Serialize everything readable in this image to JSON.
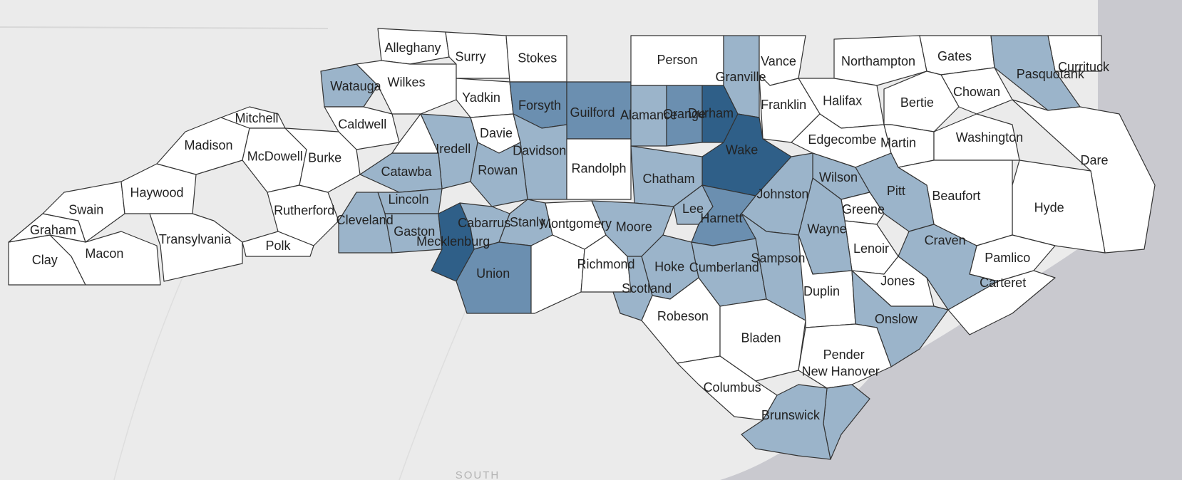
{
  "basemap": {
    "label": "SOUTH",
    "land_color": "#ebebeb",
    "water_color": "#c9c9cf",
    "state_line_color": "#d8d8d8"
  },
  "legend_colors": {
    "none": "#ffffff",
    "light": "#9bb4ca",
    "medium": "#6b8fb0",
    "dark": "#2f5f88"
  },
  "counties": [
    {
      "name": "Alleghany",
      "level": "none"
    },
    {
      "name": "Surry",
      "level": "none"
    },
    {
      "name": "Stokes",
      "level": "none"
    },
    {
      "name": "Person",
      "level": "none"
    },
    {
      "name": "Vance",
      "level": "none"
    },
    {
      "name": "Northampton",
      "level": "none"
    },
    {
      "name": "Gates",
      "level": "none"
    },
    {
      "name": "Currituck",
      "level": "none"
    },
    {
      "name": "Pasquotank",
      "level": "light"
    },
    {
      "name": "Watauga",
      "level": "light"
    },
    {
      "name": "Wilkes",
      "level": "none"
    },
    {
      "name": "Yadkin",
      "level": "none"
    },
    {
      "name": "Forsyth",
      "level": "medium"
    },
    {
      "name": "Alamance",
      "level": "light"
    },
    {
      "name": "Durham",
      "level": "dark"
    },
    {
      "name": "Halifax",
      "level": "none"
    },
    {
      "name": "Bertie",
      "level": "none"
    },
    {
      "name": "Chowan",
      "level": "none"
    },
    {
      "name": "Mitchell",
      "level": "none"
    },
    {
      "name": "Caldwell",
      "level": "none"
    },
    {
      "name": "Franklin",
      "level": "none"
    },
    {
      "name": "Davie",
      "level": "none"
    },
    {
      "name": "Madison",
      "level": "none"
    },
    {
      "name": "Edgecombe",
      "level": "none"
    },
    {
      "name": "Martin",
      "level": "none"
    },
    {
      "name": "Washington",
      "level": "none"
    },
    {
      "name": "Iredell",
      "level": "light"
    },
    {
      "name": "Davidson",
      "level": "light"
    },
    {
      "name": "Burke",
      "level": "none"
    },
    {
      "name": "Wake",
      "level": "dark"
    },
    {
      "name": "McDowell",
      "level": "none"
    },
    {
      "name": "Catawba",
      "level": "light"
    },
    {
      "name": "Chatham",
      "level": "light"
    },
    {
      "name": "Wilson",
      "level": "light"
    },
    {
      "name": "Dare",
      "level": "none"
    },
    {
      "name": "Rowan",
      "level": "light"
    },
    {
      "name": "Pitt",
      "level": "light"
    },
    {
      "name": "Haywood",
      "level": "none"
    },
    {
      "name": "Swain",
      "level": "none"
    },
    {
      "name": "Lincoln",
      "level": "light"
    },
    {
      "name": "Lee",
      "level": "light"
    },
    {
      "name": "Johnston",
      "level": "light"
    },
    {
      "name": "Greene",
      "level": "none"
    },
    {
      "name": "Beaufort",
      "level": "none"
    },
    {
      "name": "Hyde",
      "level": "none"
    },
    {
      "name": "Rutherford",
      "level": "none"
    },
    {
      "name": "Cabarrus",
      "level": "light"
    },
    {
      "name": "Harnett",
      "level": "medium"
    },
    {
      "name": "Wayne",
      "level": "light"
    },
    {
      "name": "Graham",
      "level": "none"
    },
    {
      "name": "Montgomery",
      "level": "none"
    },
    {
      "name": "Gaston",
      "level": "light"
    },
    {
      "name": "Polk",
      "level": "none"
    },
    {
      "name": "Lenoir",
      "level": "none"
    },
    {
      "name": "Transylvania",
      "level": "none"
    },
    {
      "name": "Pamlico",
      "level": "none"
    },
    {
      "name": "Macon",
      "level": "none"
    },
    {
      "name": "Craven",
      "level": "light"
    },
    {
      "name": "Clay",
      "level": "none"
    },
    {
      "name": "Hoke",
      "level": "light"
    },
    {
      "name": "Jones",
      "level": "none"
    },
    {
      "name": "Sampson",
      "level": "light"
    },
    {
      "name": "Union",
      "level": "medium"
    },
    {
      "name": "Richmond",
      "level": "none"
    },
    {
      "name": "Duplin",
      "level": "none"
    },
    {
      "name": "Carteret",
      "level": "none"
    },
    {
      "name": "Scotland",
      "level": "light"
    },
    {
      "name": "Onslow",
      "level": "light"
    },
    {
      "name": "Robeson",
      "level": "none"
    },
    {
      "name": "Bladen",
      "level": "none"
    },
    {
      "name": "Pender",
      "level": "none"
    },
    {
      "name": "Columbus",
      "level": "none"
    },
    {
      "name": "New Hanover",
      "level": "light"
    },
    {
      "name": "Brunswick",
      "level": "light"
    },
    {
      "name": "Mecklenburg",
      "level": "dark"
    },
    {
      "name": "Guilford",
      "level": "medium"
    },
    {
      "name": "Orange",
      "level": "medium"
    },
    {
      "name": "Granville",
      "level": "light"
    },
    {
      "name": "Randolph",
      "level": "none"
    },
    {
      "name": "Cumberland",
      "level": "light"
    },
    {
      "name": "Moore",
      "level": "light"
    },
    {
      "name": "Cleveland",
      "level": "light"
    },
    {
      "name": "Stanly",
      "level": "light"
    }
  ]
}
